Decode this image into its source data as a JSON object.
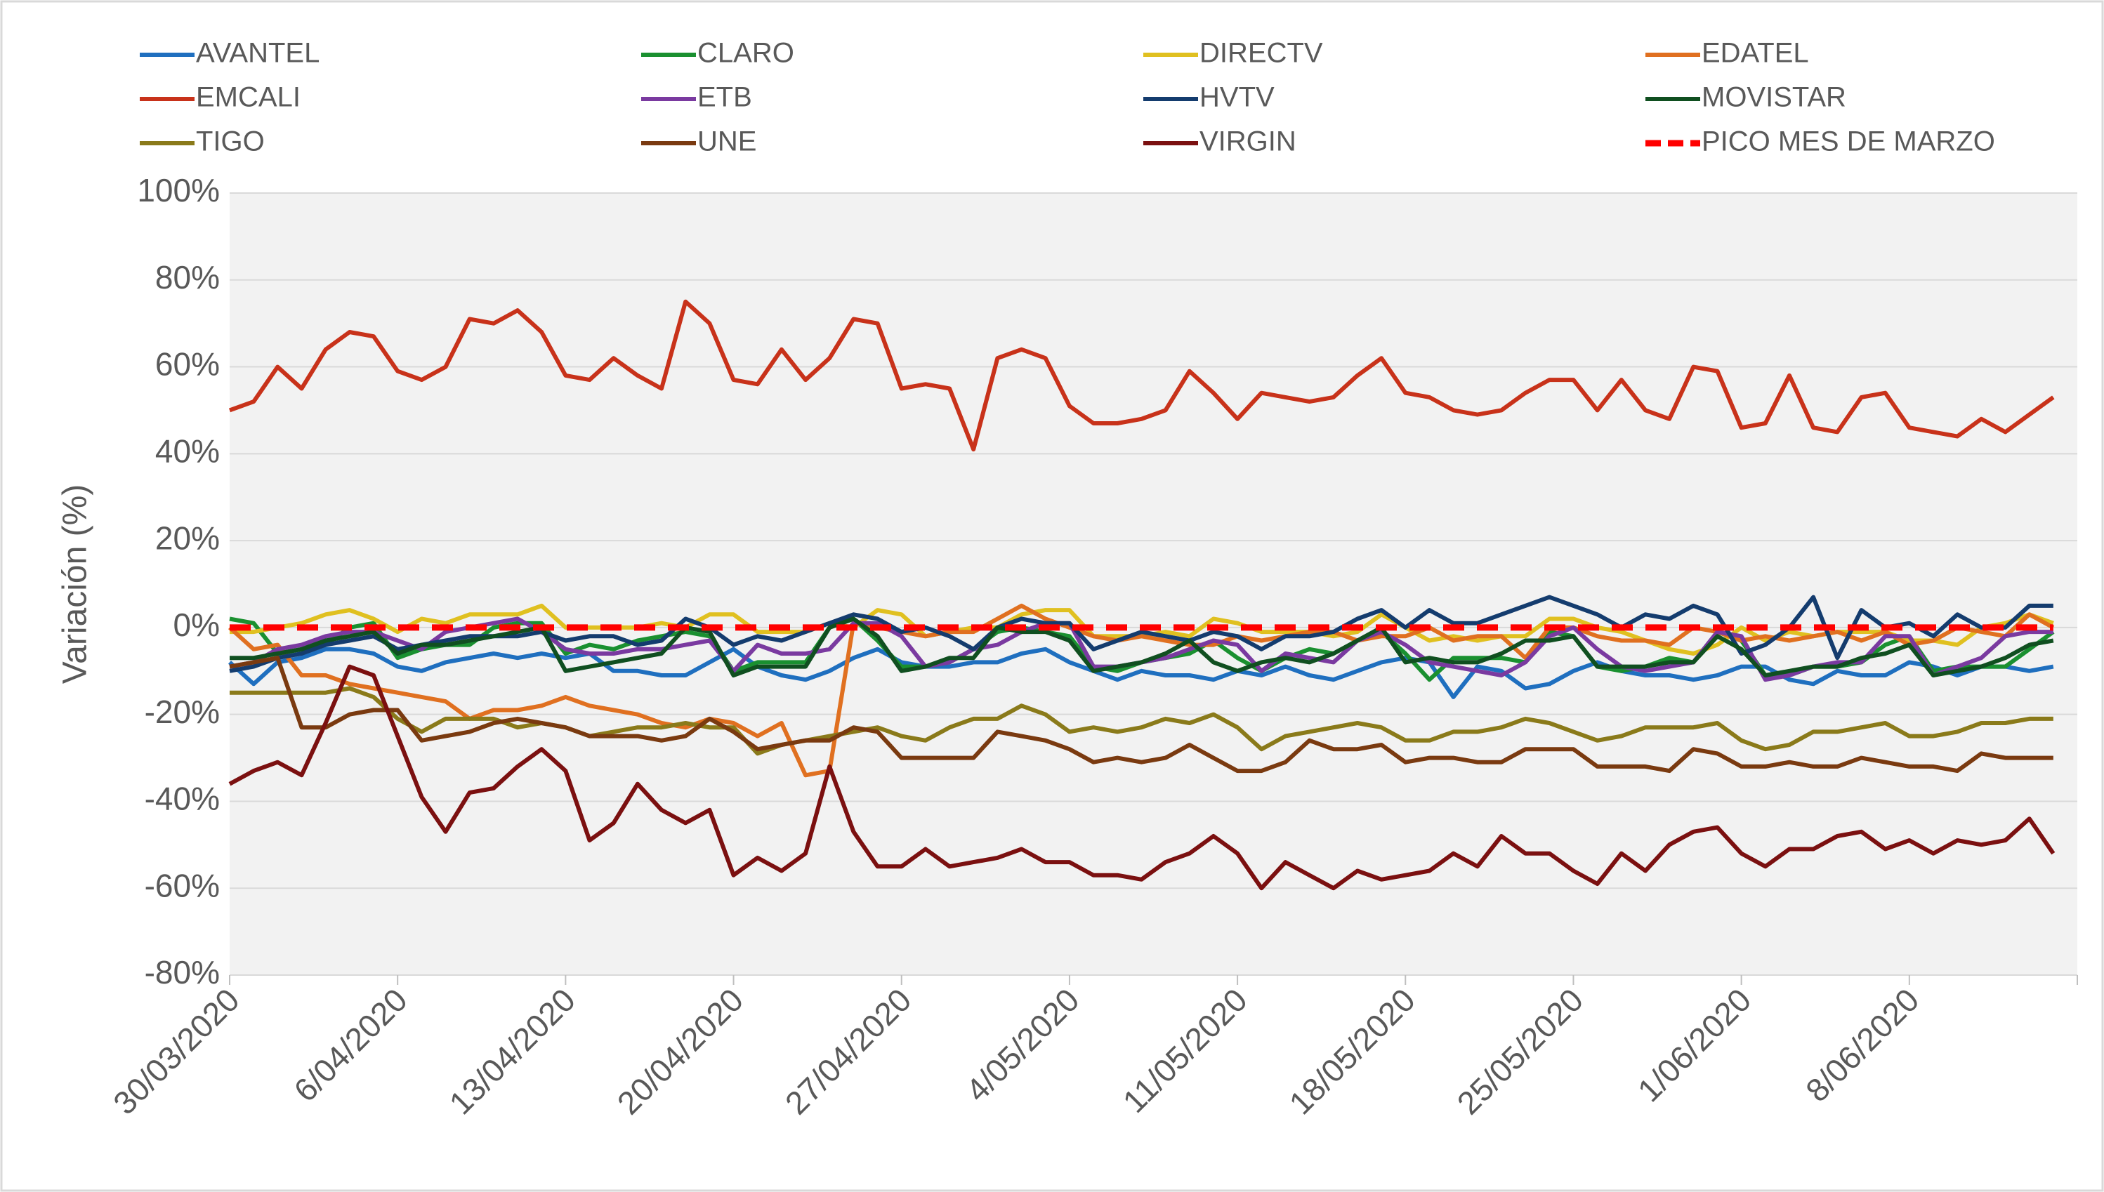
{
  "chart_data": {
    "type": "line",
    "y_label": "Variación (%)",
    "ylim": [
      -80,
      100
    ],
    "yticks": [
      {
        "value": -80,
        "label": "-80%"
      },
      {
        "value": -60,
        "label": "-60%"
      },
      {
        "value": -40,
        "label": "-40%"
      },
      {
        "value": -20,
        "label": "-20%"
      },
      {
        "value": 0,
        "label": "0%"
      },
      {
        "value": 20,
        "label": "20%"
      },
      {
        "value": 40,
        "label": "40%"
      },
      {
        "value": 60,
        "label": "60%"
      },
      {
        "value": 80,
        "label": "80%"
      },
      {
        "value": 100,
        "label": "100%"
      }
    ],
    "grid": true,
    "legend": "top",
    "categories": [
      "30/03/2020",
      null,
      null,
      null,
      null,
      null,
      null,
      "6/04/2020",
      null,
      null,
      null,
      null,
      null,
      null,
      "13/04/2020",
      null,
      null,
      null,
      null,
      null,
      null,
      "20/04/2020",
      null,
      null,
      null,
      null,
      null,
      null,
      "27/04/2020",
      null,
      null,
      null,
      null,
      null,
      null,
      "4/05/2020",
      null,
      null,
      null,
      null,
      null,
      null,
      "11/05/2020",
      null,
      null,
      null,
      null,
      null,
      null,
      "18/05/2020",
      null,
      null,
      null,
      null,
      null,
      null,
      "25/05/2020",
      null,
      null,
      null,
      null,
      null,
      null,
      "1/06/2020",
      null,
      null,
      null,
      null,
      null,
      null,
      "8/06/2020",
      null,
      null,
      null,
      null,
      null,
      null
    ],
    "series": [
      {
        "name": "AVANTEL",
        "color": "#1f6fbf",
        "values": [
          -8,
          -13,
          -8,
          -7,
          -5,
          -5,
          -6,
          -9,
          -10,
          -8,
          -7,
          -6,
          -7,
          -6,
          -7,
          -6,
          -10,
          -10,
          -11,
          -11,
          -8,
          -5,
          -9,
          -11,
          -12,
          -10,
          -7,
          -5,
          -8,
          -9,
          -9,
          -8,
          -8,
          -6,
          -5,
          -8,
          -10,
          -12,
          -10,
          -11,
          -11,
          -12,
          -10,
          -11,
          -9,
          -11,
          -12,
          -10,
          -8,
          -7,
          -8,
          -16,
          -9,
          -10,
          -14,
          -13,
          -10,
          -8,
          -10,
          -11,
          -11,
          -12,
          -11,
          -9,
          -9,
          -12,
          -13,
          -10,
          -11,
          -11,
          -8,
          -9,
          -11,
          -9,
          -9,
          -10,
          -9
        ]
      },
      {
        "name": "CLARO",
        "color": "#1a9030",
        "values": [
          2,
          1,
          -6,
          -5,
          -4,
          0,
          1,
          -7,
          -5,
          -4,
          -4,
          0,
          1,
          1,
          -6,
          -4,
          -5,
          -3,
          -2,
          -1,
          -2,
          -10,
          -8,
          -8,
          -8,
          0,
          2,
          -3,
          -9,
          -9,
          -8,
          -5,
          -1,
          0,
          -1,
          -2,
          -9,
          -10,
          -8,
          -7,
          -6,
          -3,
          -7,
          -10,
          -7,
          -5,
          -6,
          -3,
          -1,
          -6,
          -12,
          -7,
          -7,
          -7,
          -8,
          -1,
          -2,
          -9,
          -10,
          -9,
          -7,
          -8,
          -1,
          -3,
          -11,
          -11,
          -9,
          -9,
          -8,
          -4,
          -2,
          -10,
          -9,
          -9,
          -9,
          -5,
          -1
        ]
      },
      {
        "name": "DIRECTV",
        "color": "#e0c020",
        "values": [
          -1,
          -1,
          0,
          1,
          3,
          4,
          2,
          -1,
          2,
          1,
          3,
          3,
          3,
          5,
          0,
          0,
          0,
          0,
          1,
          0,
          3,
          3,
          -1,
          -1,
          -1,
          1,
          0,
          4,
          3,
          -2,
          -1,
          0,
          0,
          3,
          4,
          4,
          -2,
          -2,
          -2,
          -1,
          -2,
          2,
          1,
          -1,
          -1,
          -1,
          -2,
          -1,
          3,
          0,
          -3,
          -2,
          -3,
          -2,
          -2,
          2,
          2,
          0,
          -1,
          -3,
          -5,
          -6,
          -4,
          0,
          -3,
          -1,
          -2,
          -1,
          -1,
          -1,
          -3,
          -3,
          -4,
          0,
          1,
          3,
          1
        ]
      },
      {
        "name": "EDATEL",
        "color": "#e07020",
        "values": [
          0,
          -5,
          -4,
          -11,
          -11,
          -13,
          -14,
          -15,
          -16,
          -17,
          -21,
          -19,
          -19,
          -18,
          -16,
          -18,
          -19,
          -20,
          -22,
          -23,
          -21,
          -22,
          -25,
          -22,
          -34,
          -33,
          1,
          0,
          -1,
          -2,
          -1,
          -1,
          2,
          5,
          2,
          0,
          -2,
          -3,
          -2,
          -3,
          -4,
          -4,
          -2,
          -3,
          -2,
          -1,
          -1,
          -3,
          -2,
          -2,
          0,
          -3,
          -2,
          -2,
          -7,
          0,
          0,
          -2,
          -3,
          -3,
          -4,
          0,
          -1,
          -3,
          -2,
          -3,
          -2,
          -1,
          -3,
          -1,
          -4,
          -3,
          0,
          -1,
          -2,
          3,
          0
        ]
      },
      {
        "name": "EMCALI",
        "color": "#c8321a",
        "values": [
          50,
          52,
          60,
          55,
          64,
          68,
          67,
          59,
          57,
          60,
          71,
          70,
          73,
          68,
          58,
          57,
          62,
          58,
          55,
          75,
          70,
          57,
          56,
          64,
          57,
          62,
          71,
          70,
          55,
          56,
          55,
          41,
          62,
          64,
          62,
          51,
          47,
          47,
          48,
          50,
          59,
          54,
          48,
          54,
          53,
          52,
          53,
          58,
          62,
          54,
          53,
          50,
          49,
          50,
          54,
          57,
          57,
          50,
          57,
          50,
          48,
          60,
          59,
          46,
          47,
          58,
          46,
          45,
          53,
          54,
          46,
          45,
          44,
          48,
          45,
          49,
          53
        ]
      },
      {
        "name": "ETB",
        "color": "#7a3aa0",
        "values": [
          -9,
          -8,
          -5,
          -4,
          -2,
          -1,
          -1,
          -3,
          -5,
          -1,
          0,
          1,
          2,
          -1,
          -5,
          -6,
          -6,
          -5,
          -5,
          -4,
          -3,
          -10,
          -4,
          -6,
          -6,
          -5,
          1,
          1,
          -2,
          -9,
          -8,
          -5,
          -4,
          -1,
          1,
          1,
          -9,
          -9,
          -8,
          -7,
          -5,
          -3,
          -4,
          -10,
          -6,
          -7,
          -8,
          -3,
          -1,
          -4,
          -8,
          -9,
          -10,
          -11,
          -8,
          -2,
          0,
          -5,
          -9,
          -10,
          -9,
          -8,
          -1,
          -2,
          -12,
          -11,
          -9,
          -8,
          -8,
          -2,
          -2,
          -11,
          -9,
          -7,
          -2,
          -1,
          -1
        ]
      },
      {
        "name": "HVTV",
        "color": "#143c6e",
        "values": [
          -10,
          -9,
          -7,
          -6,
          -4,
          -3,
          -2,
          -5,
          -4,
          -3,
          -2,
          -2,
          -2,
          -1,
          -3,
          -2,
          -2,
          -4,
          -3,
          2,
          0,
          -4,
          -2,
          -3,
          -1,
          1,
          3,
          2,
          -1,
          0,
          -2,
          -5,
          0,
          2,
          1,
          1,
          -5,
          -3,
          -1,
          -2,
          -3,
          -1,
          -2,
          -5,
          -2,
          -2,
          -1,
          2,
          4,
          0,
          4,
          1,
          1,
          3,
          5,
          7,
          5,
          3,
          0,
          3,
          2,
          5,
          3,
          -6,
          -4,
          0,
          7,
          -7,
          4,
          0,
          1,
          -2,
          3,
          0,
          0,
          5,
          5
        ]
      },
      {
        "name": "MOVISTAR",
        "color": "#104f20",
        "values": [
          -7,
          -7,
          -6,
          -5,
          -3,
          -2,
          -1,
          -6,
          -4,
          -4,
          -3,
          -2,
          -1,
          0,
          -10,
          -9,
          -8,
          -7,
          -6,
          0,
          -1,
          -11,
          -9,
          -9,
          -9,
          0,
          2,
          -2,
          -10,
          -9,
          -7,
          -7,
          0,
          -1,
          -1,
          -3,
          -10,
          -9,
          -8,
          -6,
          -3,
          -8,
          -10,
          -8,
          -7,
          -8,
          -6,
          -3,
          0,
          -8,
          -7,
          -8,
          -8,
          -6,
          -3,
          -3,
          -2,
          -9,
          -9,
          -9,
          -8,
          -8,
          -2,
          -5,
          -11,
          -10,
          -9,
          -9,
          -7,
          -6,
          -4,
          -11,
          -10,
          -9,
          -7,
          -4,
          -3
        ]
      },
      {
        "name": "TIGO",
        "color": "#8a7a1a",
        "values": [
          -15,
          -15,
          -15,
          -15,
          -15,
          -14,
          -16,
          -21,
          -24,
          -21,
          -21,
          -21,
          -23,
          -22,
          -23,
          -25,
          -24,
          -23,
          -23,
          -22,
          -23,
          -23,
          -29,
          -27,
          -26,
          -25,
          -24,
          -23,
          -25,
          -26,
          -23,
          -21,
          -21,
          -18,
          -20,
          -24,
          -23,
          -24,
          -23,
          -21,
          -22,
          -20,
          -23,
          -28,
          -25,
          -24,
          -23,
          -22,
          -23,
          -26,
          -26,
          -24,
          -24,
          -23,
          -21,
          -22,
          -24,
          -26,
          -25,
          -23,
          -23,
          -23,
          -22,
          -26,
          -28,
          -27,
          -24,
          -24,
          -23,
          -22,
          -25,
          -25,
          -24,
          -22,
          -22,
          -21,
          -21
        ]
      },
      {
        "name": "UNE",
        "color": "#7a3a10",
        "values": [
          -9,
          -8,
          -7,
          -23,
          -23,
          -20,
          -19,
          -19,
          -26,
          -25,
          -24,
          -22,
          -21,
          -22,
          -23,
          -25,
          -25,
          -25,
          -26,
          -25,
          -21,
          -24,
          -28,
          -27,
          -26,
          -26,
          -23,
          -24,
          -30,
          -30,
          -30,
          -30,
          -24,
          -25,
          -26,
          -28,
          -31,
          -30,
          -31,
          -30,
          -27,
          -30,
          -33,
          -33,
          -31,
          -26,
          -28,
          -28,
          -27,
          -31,
          -30,
          -30,
          -31,
          -31,
          -28,
          -28,
          -28,
          -32,
          -32,
          -32,
          -33,
          -28,
          -29,
          -32,
          -32,
          -31,
          -32,
          -32,
          -30,
          -31,
          -32,
          -32,
          -33,
          -29,
          -30,
          -30,
          -30
        ]
      },
      {
        "name": "VIRGIN",
        "color": "#7b1010",
        "values": [
          -36,
          -33,
          -31,
          -34,
          -22,
          -9,
          -11,
          -25,
          -39,
          -47,
          -38,
          -37,
          -32,
          -28,
          -33,
          -49,
          -45,
          -36,
          -42,
          -45,
          -42,
          -57,
          -53,
          -56,
          -52,
          -32,
          -47,
          -55,
          -55,
          -51,
          -55,
          -54,
          -53,
          -51,
          -54,
          -54,
          -57,
          -57,
          -58,
          -54,
          -52,
          -48,
          -52,
          -60,
          -54,
          -57,
          -60,
          -56,
          -58,
          -57,
          -56,
          -52,
          -55,
          -48,
          -52,
          -52,
          -56,
          -59,
          -52,
          -56,
          -50,
          -47,
          -46,
          -52,
          -55,
          -51,
          -51,
          -48,
          -47,
          -51,
          -49,
          -52,
          -49,
          -50,
          -49,
          -44,
          -52
        ]
      },
      {
        "name": "PICO MES DE MARZO",
        "color": "#ff0000",
        "dashed": true,
        "values": [
          0,
          0,
          0,
          0,
          0,
          0,
          0,
          0,
          0,
          0,
          0,
          0,
          0,
          0,
          0,
          0,
          0,
          0,
          0,
          0,
          0,
          0,
          0,
          0,
          0,
          0,
          0,
          0,
          0,
          0,
          0,
          0,
          0,
          0,
          0,
          0,
          0,
          0,
          0,
          0,
          0,
          0,
          0,
          0,
          0,
          0,
          0,
          0,
          0,
          0,
          0,
          0,
          0,
          0,
          0,
          0,
          0,
          0,
          0,
          0,
          0,
          0,
          0,
          0,
          0,
          0,
          0,
          0,
          0,
          0,
          0,
          0,
          0,
          0,
          0,
          0,
          0
        ]
      }
    ]
  }
}
